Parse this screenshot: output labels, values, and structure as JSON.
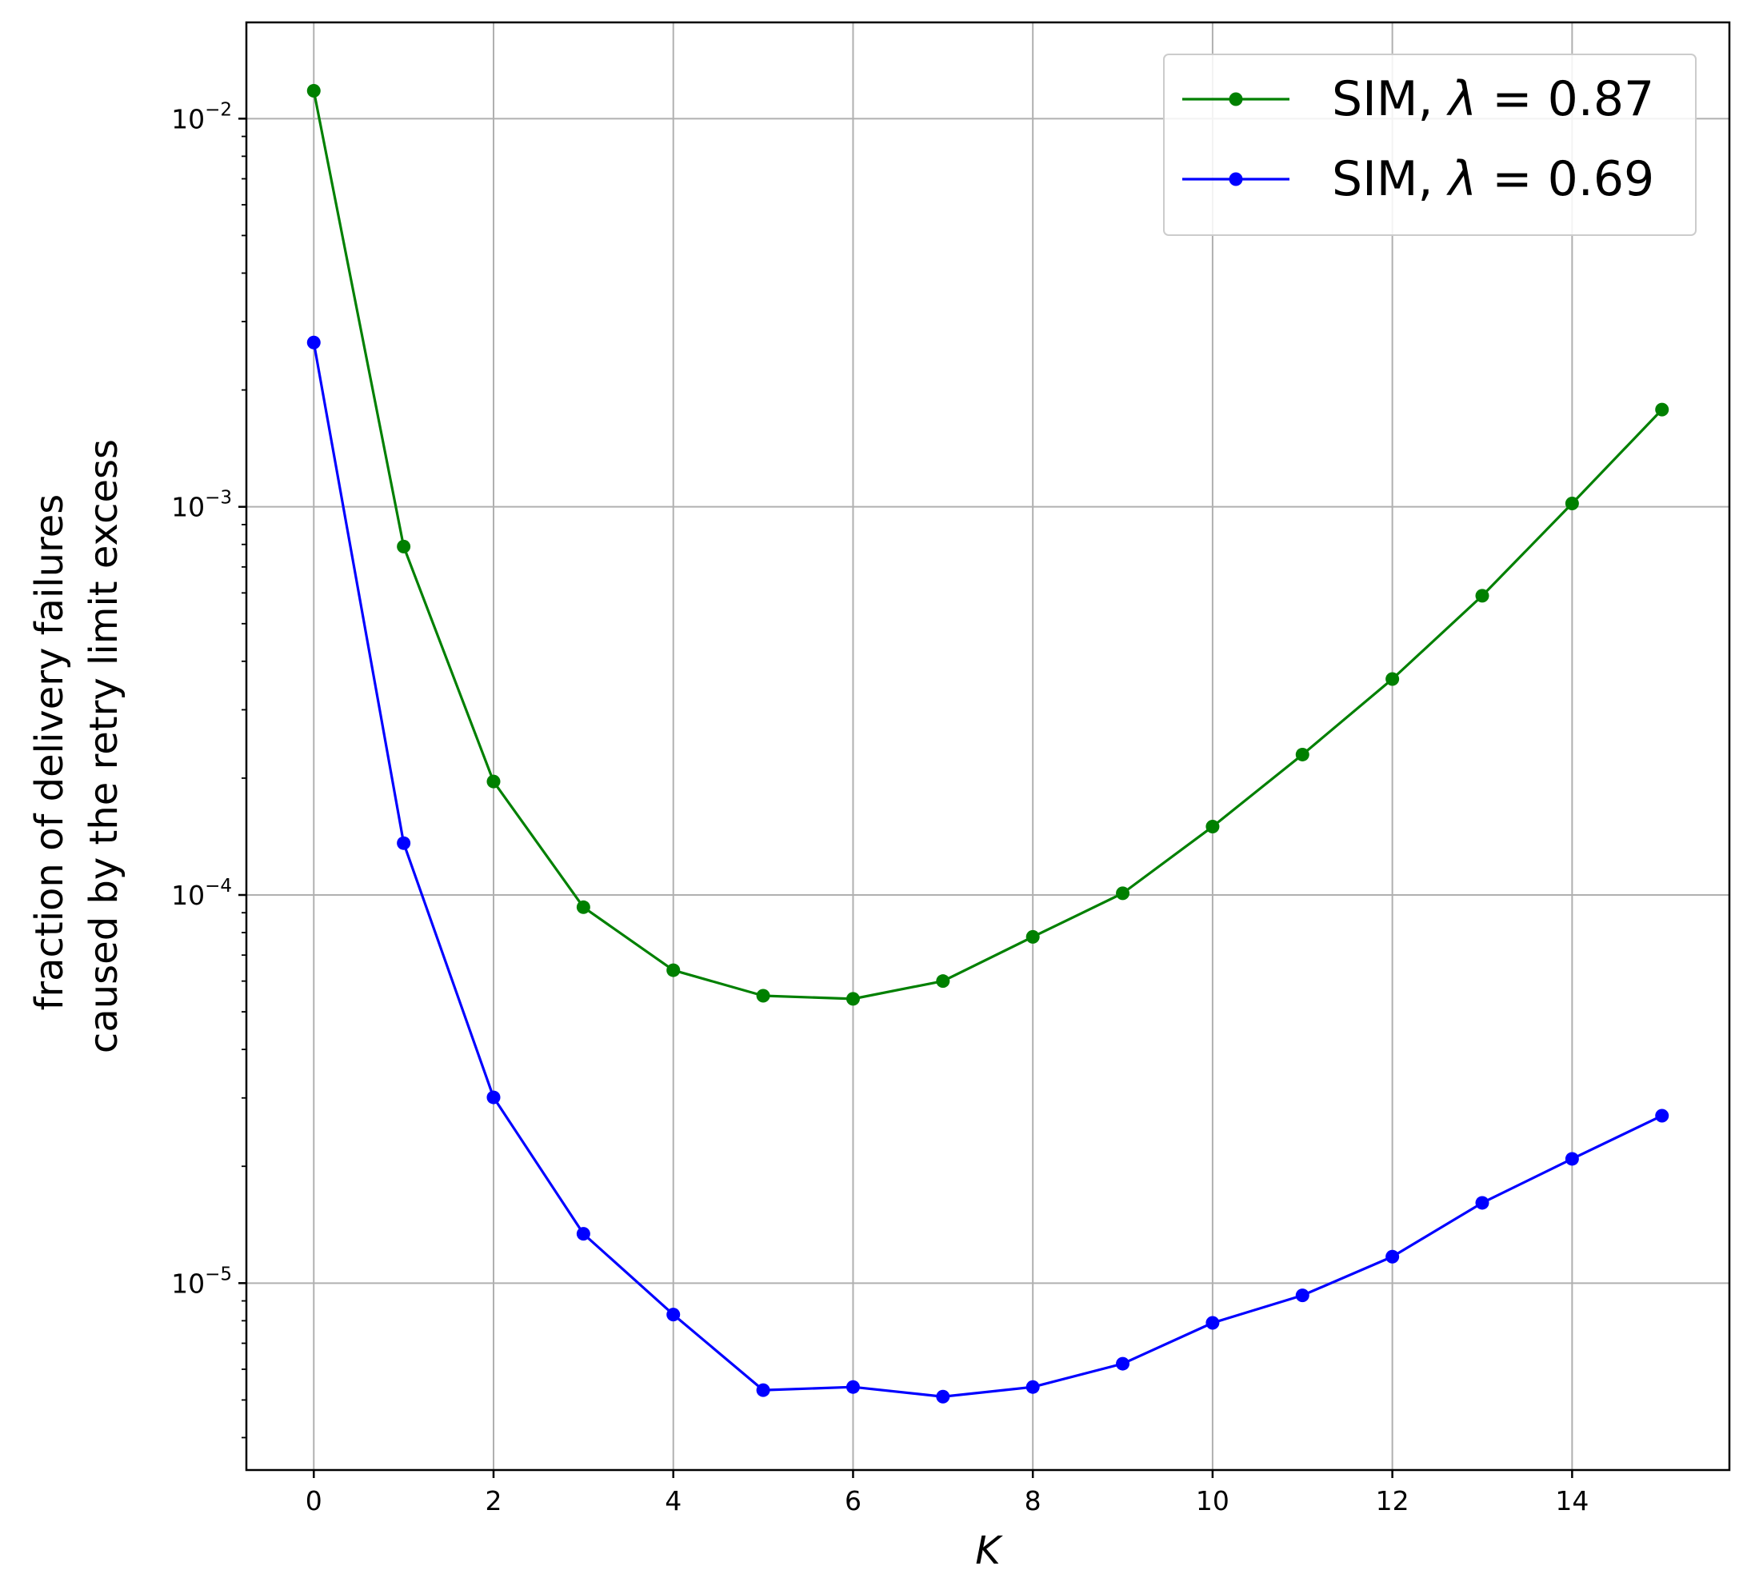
{
  "chart_data": {
    "type": "line",
    "xlabel": "K",
    "ylabel_lines": [
      "fraction of delivery failures",
      "caused by the retry limit excess"
    ],
    "y_scale": "log",
    "xlim": [
      -0.75,
      15.75
    ],
    "ylim": [
      3.3e-06,
      0.0177
    ],
    "x_ticks": [
      0,
      2,
      4,
      6,
      8,
      10,
      12,
      14
    ],
    "x_tick_labels": [
      "0",
      "2",
      "4",
      "6",
      "8",
      "10",
      "12",
      "14"
    ],
    "y_ticks": [
      0.01,
      0.001,
      0.0001,
      1e-05
    ],
    "y_tick_labels": [
      {
        "base": "10",
        "exp": "−2"
      },
      {
        "base": "10",
        "exp": "−3"
      },
      {
        "base": "10",
        "exp": "−4"
      },
      {
        "base": "10",
        "exp": "−5"
      }
    ],
    "grid": true,
    "legend_position": "top-right",
    "x": [
      0,
      1,
      2,
      3,
      4,
      5,
      6,
      7,
      8,
      9,
      10,
      11,
      12,
      13,
      14,
      15
    ],
    "series": [
      {
        "name": "SIM, λ = 0.87",
        "legend_prefix": "SIM, ",
        "legend_symbol": "λ",
        "legend_suffix": " = 0.87",
        "color": "#008000",
        "values": [
          0.0118,
          0.00079,
          0.000196,
          9.3e-05,
          6.4e-05,
          5.5e-05,
          5.4e-05,
          6e-05,
          7.8e-05,
          0.000101,
          0.00015,
          0.00023,
          0.00036,
          0.00059,
          0.00102,
          0.00178
        ]
      },
      {
        "name": "SIM, λ = 0.69",
        "legend_prefix": "SIM, ",
        "legend_symbol": "λ",
        "legend_suffix": " = 0.69",
        "color": "#0000ff",
        "values": [
          0.00265,
          0.000136,
          3.01e-05,
          1.34e-05,
          8.3e-06,
          5.3e-06,
          5.4e-06,
          5.1e-06,
          5.4e-06,
          6.2e-06,
          7.9e-06,
          9.3e-06,
          1.17e-05,
          1.61e-05,
          2.09e-05,
          2.7e-05
        ]
      }
    ]
  }
}
